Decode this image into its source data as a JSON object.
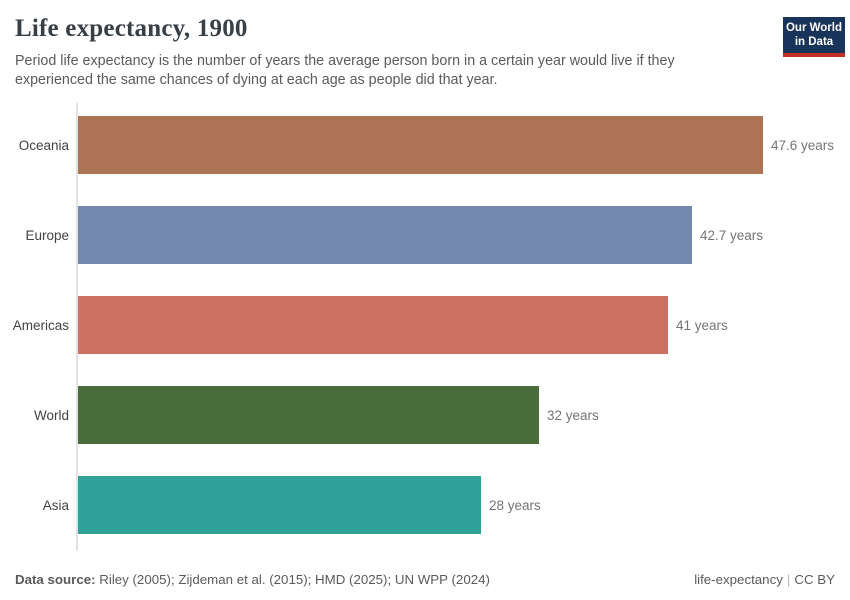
{
  "header": {
    "logo": {
      "line1": "Our World",
      "line2": "in Data",
      "bg_color": "#18345a",
      "stripe_color": "#c62d27"
    }
  },
  "chart_data": {
    "type": "bar",
    "orientation": "horizontal",
    "title": "Life expectancy, 1900",
    "subtitle": "Period life expectancy is the number of years the average person born in a certain year would live if they experienced the same chances of dying at each age as people did that year.",
    "categories": [
      "Oceania",
      "Europe",
      "Americas",
      "World",
      "Asia"
    ],
    "values": [
      47.6,
      42.7,
      41,
      32,
      28
    ],
    "value_labels": [
      "47.6 years",
      "42.7 years",
      "41 years",
      "32 years",
      "28 years"
    ],
    "unit": "years",
    "bar_colors": [
      "#ad7355",
      "#7289ad",
      "#cc7164",
      "#4a6d3c",
      "#30a299"
    ],
    "xlim": [
      0,
      47.6
    ],
    "grid": false,
    "legend": false,
    "axis_color": "#e2e2e2",
    "category_label_color": "#434343",
    "value_label_color": "#757575"
  },
  "footer": {
    "data_source_label": "Data source:",
    "data_source_text": " Riley (2005); Zijdeman et al. (2015); HMD (2025); UN WPP (2024)",
    "chart_slug": "life-expectancy",
    "separator": "|",
    "license": "CC BY"
  }
}
